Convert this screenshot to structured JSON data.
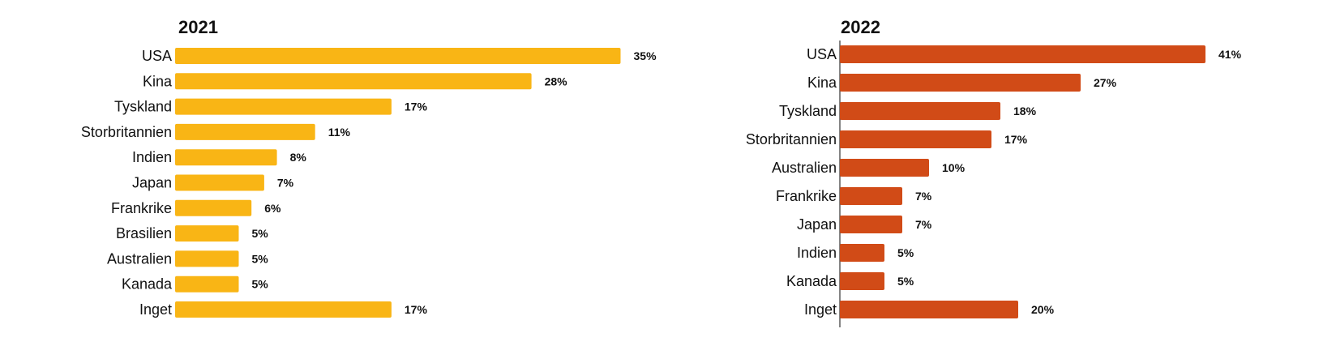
{
  "chart_data": [
    {
      "type": "bar",
      "orientation": "horizontal",
      "title": "2021",
      "color": "#F9B515",
      "categories": [
        "USA",
        "Kina",
        "Tyskland",
        "Storbritannien",
        "Indien",
        "Japan",
        "Frankrike",
        "Brasilien",
        "Australien",
        "Kanada",
        "Inget"
      ],
      "values": [
        35,
        28,
        17,
        11,
        8,
        7,
        6,
        5,
        5,
        5,
        17
      ],
      "value_labels": [
        "35%",
        "28%",
        "17%",
        "11%",
        "8%",
        "7%",
        "6%",
        "5%",
        "5%",
        "5%",
        "17%"
      ],
      "xlim": [
        0,
        45
      ],
      "grid": false,
      "legend": "none"
    },
    {
      "type": "bar",
      "orientation": "horizontal",
      "title": "2022",
      "color": "#D14B17",
      "categories": [
        "USA",
        "Kina",
        "Tyskland",
        "Storbritannien",
        "Australien",
        "Frankrike",
        "Japan",
        "Indien",
        "Kanada",
        "Inget"
      ],
      "values": [
        41,
        27,
        18,
        17,
        10,
        7,
        7,
        5,
        5,
        20
      ],
      "value_labels": [
        "41%",
        "27%",
        "18%",
        "17%",
        "10%",
        "7%",
        "7%",
        "5%",
        "5%",
        "20%"
      ],
      "xlim": [
        0,
        45
      ],
      "grid": false,
      "legend": "none"
    }
  ]
}
